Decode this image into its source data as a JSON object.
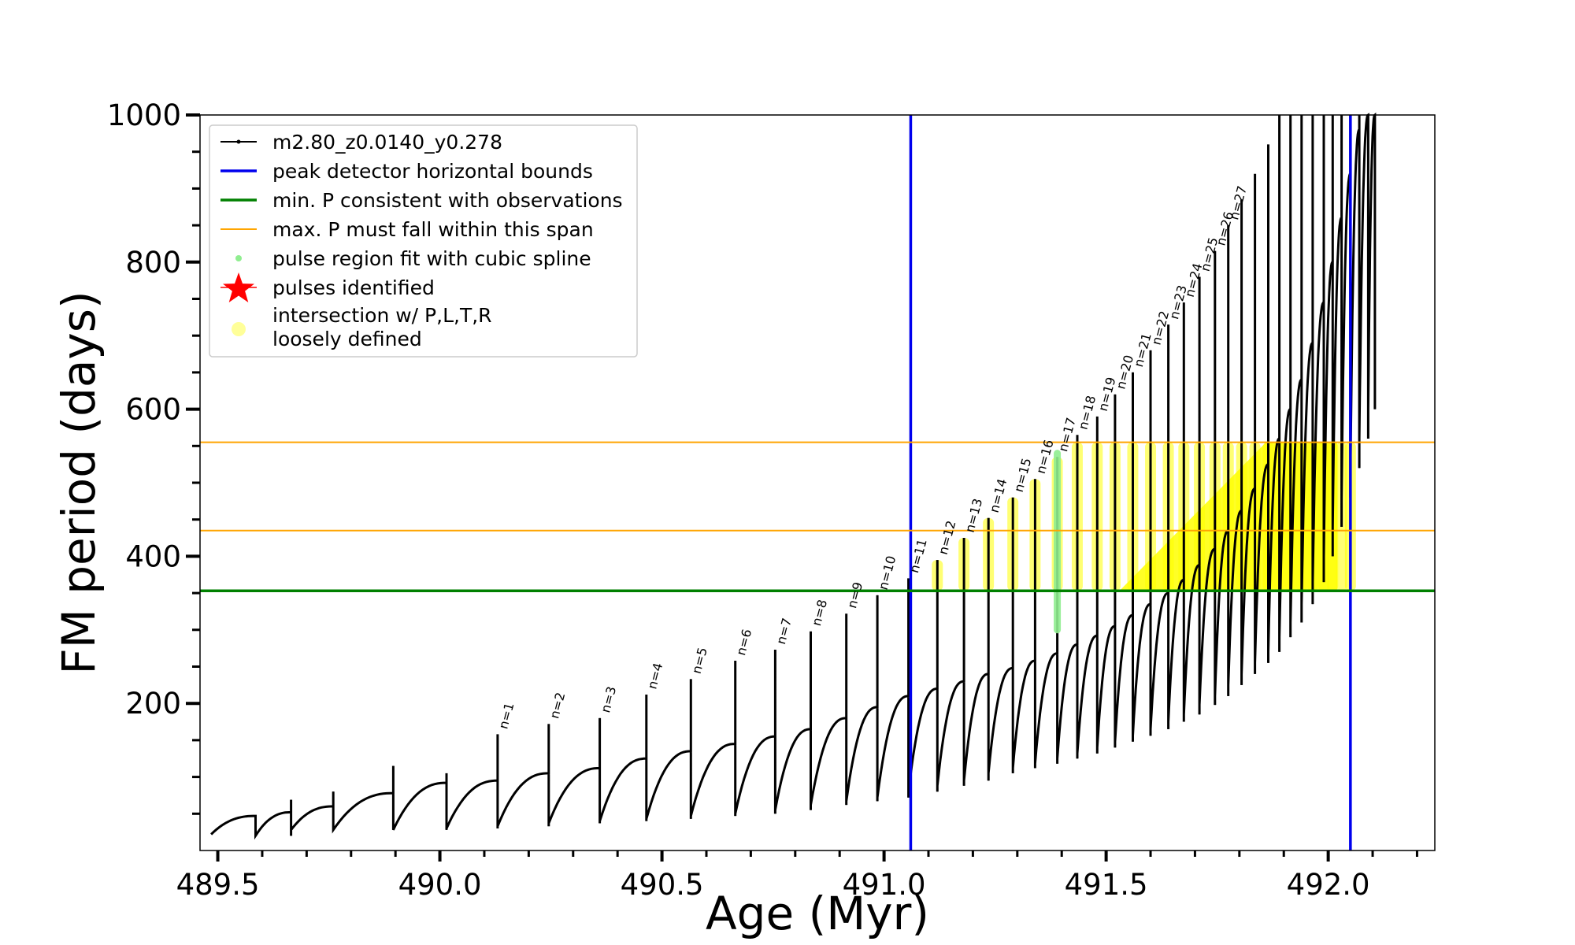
{
  "chart_data": {
    "type": "line",
    "title": "",
    "xlabel": "Age (Myr)",
    "ylabel": "FM period (days)",
    "xlim": [
      489.46,
      492.24
    ],
    "ylim": [
      0,
      1000
    ],
    "x_ticks": [
      489.5,
      490.0,
      490.5,
      491.0,
      491.5,
      492.0
    ],
    "x_tick_labels": [
      "489.5",
      "490.0",
      "490.5",
      "491.0",
      "491.5",
      "492.0"
    ],
    "y_ticks": [
      200,
      400,
      600,
      800,
      1000
    ],
    "y_tick_labels": [
      "200",
      "400",
      "600",
      "800",
      "1000"
    ],
    "grid": false,
    "legend_position": "top-left",
    "series": [
      {
        "name": "m2.80_z0.0140_y0.278",
        "color": "#000000",
        "kind": "line-with-points",
        "pulses": [
          {
            "x": 489.585,
            "start": 47,
            "peak": 22,
            "end": 47
          },
          {
            "x": 489.665,
            "start": 52,
            "peak": 20,
            "end": 69
          },
          {
            "x": 489.76,
            "start": 60,
            "peak": 28,
            "end": 80
          },
          {
            "x": 489.895,
            "start": 78,
            "peak": 28,
            "end": 115
          },
          {
            "x": 490.015,
            "start": 92,
            "peak": 28,
            "end": 105
          },
          {
            "x": 490.13,
            "start": 95,
            "peak": 30,
            "end": 158
          },
          {
            "x": 490.245,
            "start": 105,
            "peak": 33,
            "end": 172
          },
          {
            "x": 490.36,
            "start": 112,
            "peak": 37,
            "end": 180
          },
          {
            "x": 490.465,
            "start": 125,
            "peak": 40,
            "end": 212
          },
          {
            "x": 490.565,
            "start": 135,
            "peak": 43,
            "end": 233
          },
          {
            "x": 490.665,
            "start": 145,
            "peak": 47,
            "end": 258
          },
          {
            "x": 490.755,
            "start": 155,
            "peak": 50,
            "end": 273
          },
          {
            "x": 490.835,
            "start": 165,
            "peak": 55,
            "end": 298
          },
          {
            "x": 490.915,
            "start": 180,
            "peak": 62,
            "end": 322
          },
          {
            "x": 490.985,
            "start": 195,
            "peak": 67,
            "end": 347
          },
          {
            "x": 491.055,
            "start": 210,
            "peak": 72,
            "end": 370
          },
          {
            "x": 491.12,
            "start": 220,
            "peak": 80,
            "end": 395
          },
          {
            "x": 491.18,
            "start": 230,
            "peak": 88,
            "end": 425
          },
          {
            "x": 491.235,
            "start": 240,
            "peak": 95,
            "end": 452
          },
          {
            "x": 491.29,
            "start": 248,
            "peak": 105,
            "end": 480
          },
          {
            "x": 491.34,
            "start": 258,
            "peak": 112,
            "end": 505
          },
          {
            "x": 491.39,
            "start": 268,
            "peak": 118,
            "end": 535
          },
          {
            "x": 491.435,
            "start": 280,
            "peak": 125,
            "end": 565
          },
          {
            "x": 491.48,
            "start": 292,
            "peak": 132,
            "end": 590
          },
          {
            "x": 491.52,
            "start": 305,
            "peak": 140,
            "end": 620
          },
          {
            "x": 491.56,
            "start": 320,
            "peak": 148,
            "end": 650
          },
          {
            "x": 491.6,
            "start": 335,
            "peak": 156,
            "end": 680
          },
          {
            "x": 491.64,
            "start": 350,
            "peak": 165,
            "end": 715
          },
          {
            "x": 491.675,
            "start": 368,
            "peak": 175,
            "end": 745
          },
          {
            "x": 491.71,
            "start": 388,
            "peak": 185,
            "end": 780
          },
          {
            "x": 491.745,
            "start": 410,
            "peak": 198,
            "end": 815
          },
          {
            "x": 491.775,
            "start": 435,
            "peak": 210,
            "end": 850
          },
          {
            "x": 491.805,
            "start": 462,
            "peak": 225,
            "end": 885
          },
          {
            "x": 491.835,
            "start": 492,
            "peak": 240,
            "end": 920
          },
          {
            "x": 491.865,
            "start": 525,
            "peak": 255,
            "end": 960
          },
          {
            "x": 491.89,
            "start": 560,
            "peak": 270,
            "end": 1000
          },
          {
            "x": 491.915,
            "start": 600,
            "peak": 290,
            "end": 1000
          },
          {
            "x": 491.94,
            "start": 640,
            "peak": 310,
            "end": 1000
          },
          {
            "x": 491.965,
            "start": 690,
            "peak": 335,
            "end": 1000
          },
          {
            "x": 491.99,
            "start": 745,
            "peak": 365,
            "end": 1000
          },
          {
            "x": 492.01,
            "start": 800,
            "peak": 400,
            "end": 1000
          },
          {
            "x": 492.03,
            "start": 860,
            "peak": 440,
            "end": 1000
          },
          {
            "x": 492.05,
            "start": 920,
            "peak": 480,
            "end": 1000
          },
          {
            "x": 492.07,
            "start": 980,
            "peak": 520,
            "end": 1000
          },
          {
            "x": 492.09,
            "start": 1000,
            "peak": 560,
            "end": 1000
          },
          {
            "x": 492.105,
            "start": 1000,
            "peak": 600,
            "end": 1000
          }
        ]
      },
      {
        "name": "peak detector horizontal bounds",
        "color": "#0000ee",
        "kind": "vline",
        "x": [
          491.06,
          492.05
        ]
      },
      {
        "name": "min. P consistent with observations",
        "color": "#008000",
        "kind": "hline",
        "y": [
          353
        ]
      },
      {
        "name": "max. P must fall within this span",
        "color": "#ffa500",
        "kind": "hline",
        "y": [
          435,
          555
        ]
      },
      {
        "name": "pulse region fit with cubic spline",
        "color": "#90ee90",
        "kind": "marker"
      },
      {
        "name": "pulses identified",
        "color": "#ff0000",
        "kind": "star"
      },
      {
        "name": "intersection w/ P,L,T,R\nloosely defined",
        "color": "#ffff99",
        "kind": "marker"
      }
    ],
    "pulse_labels": [
      {
        "text": "n=1",
        "x": 490.13,
        "y": 160
      },
      {
        "text": "n=2",
        "x": 490.245,
        "y": 174
      },
      {
        "text": "n=3",
        "x": 490.36,
        "y": 182
      },
      {
        "text": "n=4",
        "x": 490.465,
        "y": 214
      },
      {
        "text": "n=5",
        "x": 490.565,
        "y": 235
      },
      {
        "text": "n=6",
        "x": 490.665,
        "y": 260
      },
      {
        "text": "n=7",
        "x": 490.755,
        "y": 275
      },
      {
        "text": "n=8",
        "x": 490.835,
        "y": 300
      },
      {
        "text": "n=9",
        "x": 490.915,
        "y": 324
      },
      {
        "text": "n=10",
        "x": 490.985,
        "y": 349
      },
      {
        "text": "n=11",
        "x": 491.055,
        "y": 372
      },
      {
        "text": "n=12",
        "x": 491.12,
        "y": 397
      },
      {
        "text": "n=13",
        "x": 491.18,
        "y": 427
      },
      {
        "text": "n=14",
        "x": 491.235,
        "y": 454
      },
      {
        "text": "n=15",
        "x": 491.29,
        "y": 482
      },
      {
        "text": "n=16",
        "x": 491.34,
        "y": 507
      },
      {
        "text": "n=17",
        "x": 491.39,
        "y": 537
      },
      {
        "text": "n=18",
        "x": 491.435,
        "y": 567
      },
      {
        "text": "n=19",
        "x": 491.48,
        "y": 592
      },
      {
        "text": "n=20",
        "x": 491.52,
        "y": 622
      },
      {
        "text": "n=21",
        "x": 491.56,
        "y": 652
      },
      {
        "text": "n=22",
        "x": 491.6,
        "y": 682
      },
      {
        "text": "n=23",
        "x": 491.64,
        "y": 717
      },
      {
        "text": "n=24",
        "x": 491.675,
        "y": 747
      },
      {
        "text": "n=25",
        "x": 491.71,
        "y": 782
      },
      {
        "text": "n=26",
        "x": 491.745,
        "y": 817
      },
      {
        "text": "n=27",
        "x": 491.775,
        "y": 852
      }
    ],
    "spline_region": {
      "x": 491.39,
      "y_min": 300,
      "y_max": 540
    },
    "yellow_region": {
      "x_start": 491.06,
      "x_end": 492.05,
      "y_min": 353,
      "y_max": 555
    }
  }
}
